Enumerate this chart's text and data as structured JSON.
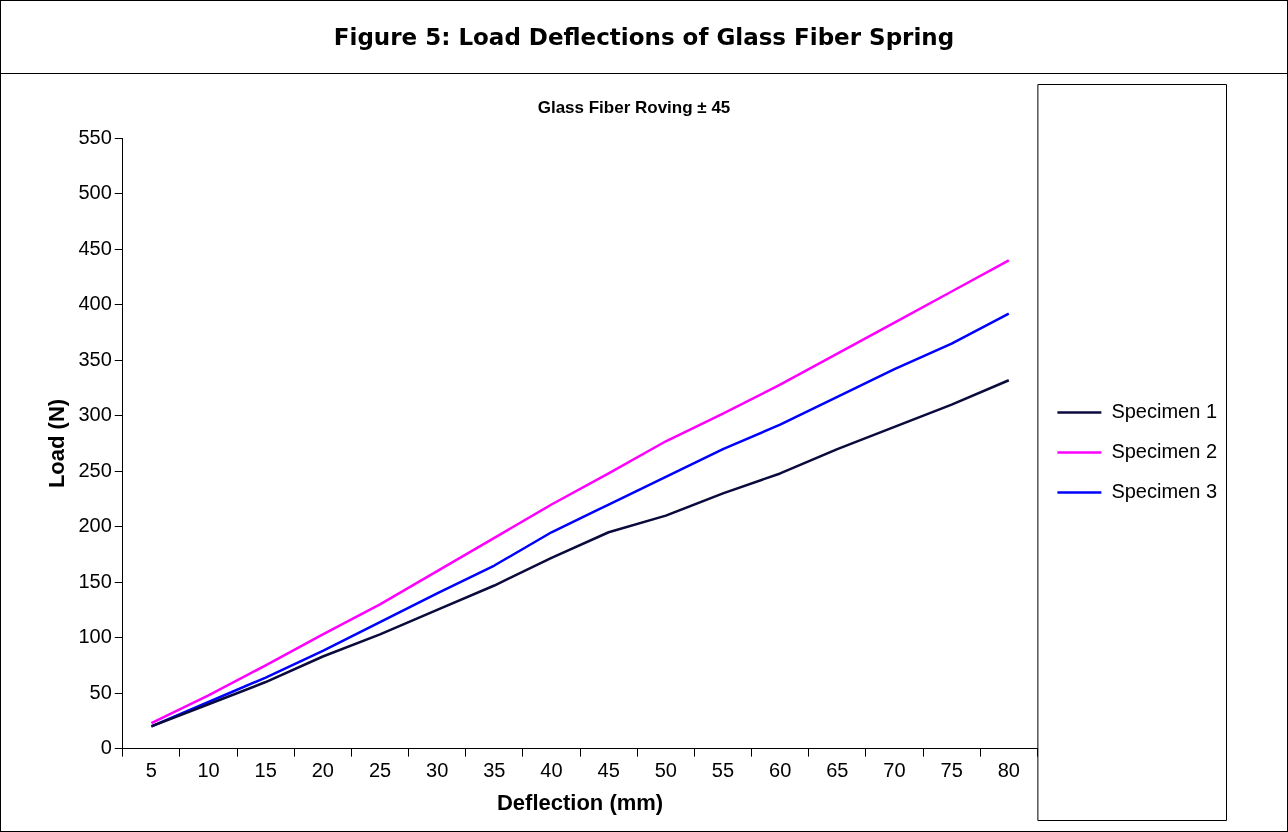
{
  "chart_data": {
    "type": "line",
    "title": "Figure 5: Load Deflections of Glass Fiber Spring",
    "subtitle": "Glass Fiber Roving ± 45",
    "xlabel": "Deflection (mm)",
    "ylabel": "Load (N)",
    "categories": [
      "5",
      "10",
      "15",
      "20",
      "25",
      "30",
      "35",
      "40",
      "45",
      "50",
      "55",
      "60",
      "65",
      "70",
      "75",
      "80"
    ],
    "series": [
      {
        "name": "Specimen 1",
        "color": "#0a0a3c",
        "values": [
          20,
          40,
          60,
          83,
          103,
          125,
          147,
          172,
          195,
          210,
          230,
          248,
          270,
          290,
          310,
          332
        ]
      },
      {
        "name": "Specimen 2",
        "color": "#ff00ff",
        "values": [
          23,
          48,
          75,
          103,
          130,
          160,
          190,
          220,
          248,
          277,
          302,
          328,
          356,
          384,
          412,
          440
        ]
      },
      {
        "name": "Specimen 3",
        "color": "#0000ff",
        "values": [
          20,
          42,
          64,
          88,
          114,
          140,
          165,
          195,
          220,
          245,
          270,
          292,
          317,
          342,
          365,
          392
        ]
      }
    ],
    "ylim": [
      0,
      550
    ],
    "yticks": [
      0,
      50,
      100,
      150,
      200,
      250,
      300,
      350,
      400,
      450,
      500,
      550
    ],
    "grid": false,
    "legend": "right",
    "marker": "none",
    "line_style": "solid"
  }
}
